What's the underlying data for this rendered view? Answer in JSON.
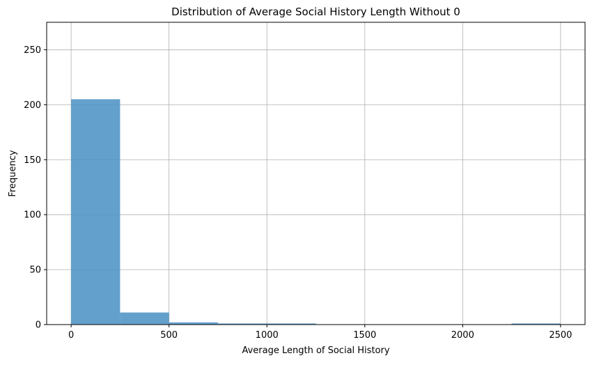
{
  "chart_data": {
    "type": "bar",
    "title": "Distribution of Average Social History Length Without 0",
    "xlabel": "Average Length of Social History",
    "ylabel": "Frequency",
    "bins": [
      {
        "start": 0,
        "end": 250,
        "count": 205
      },
      {
        "start": 250,
        "end": 500,
        "count": 11
      },
      {
        "start": 500,
        "end": 750,
        "count": 2
      },
      {
        "start": 750,
        "end": 1000,
        "count": 1
      },
      {
        "start": 1000,
        "end": 1250,
        "count": 1
      },
      {
        "start": 1250,
        "end": 1500,
        "count": 0
      },
      {
        "start": 1500,
        "end": 1750,
        "count": 0
      },
      {
        "start": 1750,
        "end": 2000,
        "count": 0
      },
      {
        "start": 2000,
        "end": 2250,
        "count": 0
      },
      {
        "start": 2250,
        "end": 2500,
        "count": 1
      }
    ],
    "xlim": [
      -125,
      2625
    ],
    "ylim": [
      0,
      275
    ],
    "xticks": [
      0,
      500,
      1000,
      1500,
      2000,
      2500
    ],
    "yticks": [
      0,
      50,
      100,
      150,
      200,
      250
    ],
    "grid": true,
    "bar_color": "#4f93c5",
    "bar_opacity": 0.88
  }
}
